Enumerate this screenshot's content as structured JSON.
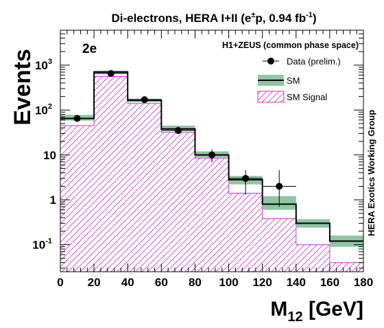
{
  "chart_data": {
    "type": "bar",
    "title": "Di-electrons, HERA I+II (e",
    "title_sup1": "±",
    "title_mid": "p, 0.94 fb",
    "title_sup2": "-1",
    "title_end": ")",
    "channel_label": "2e",
    "phase_space_label": "H1+ZEUS (common phase space)",
    "side_label": "HERA Exotics Working Group",
    "xlabel_main": "M",
    "xlabel_sub": "12",
    "xlabel_unit": " [GeV]",
    "ylabel": "Events",
    "x_scale": "linear",
    "y_scale": "log",
    "xlim": [
      0,
      180
    ],
    "ylim": [
      0.025,
      6000
    ],
    "x_ticks": [
      0,
      20,
      40,
      60,
      80,
      100,
      120,
      140,
      160,
      180
    ],
    "y_tick_labels": [
      {
        "value": 1000,
        "base": "10",
        "exp": "3"
      },
      {
        "value": 100,
        "base": "10",
        "exp": "2"
      },
      {
        "value": 10,
        "base": "10",
        "exp": ""
      },
      {
        "value": 1,
        "base": "1",
        "exp": ""
      },
      {
        "value": 0.1,
        "base": "10",
        "exp": "-1"
      }
    ],
    "bin_edges": [
      0,
      20,
      40,
      60,
      80,
      100,
      120,
      140,
      160,
      180
    ],
    "series": [
      {
        "name": "Data (prelim.)",
        "kind": "points",
        "x": [
          10,
          30,
          50,
          70,
          90,
          110,
          130
        ],
        "values": [
          65,
          650,
          170,
          35,
          10,
          3,
          2
        ],
        "err_low": [
          57,
          625,
          157,
          29,
          6.8,
          1.3,
          0.7
        ],
        "err_high": [
          74,
          676,
          184,
          41,
          13.2,
          4.6,
          4.6
        ],
        "marker_color": "#000000"
      },
      {
        "name": "SM",
        "kind": "step",
        "values": [
          65,
          700,
          165,
          38,
          10,
          2.8,
          0.8,
          0.3,
          0.12
        ],
        "band_low": [
          58,
          640,
          150,
          34,
          8.8,
          2.2,
          0.6,
          0.24,
          0.09
        ],
        "band_high": [
          78,
          760,
          180,
          45,
          12,
          3.4,
          1.2,
          0.37,
          0.16
        ],
        "line_color": "#000000",
        "band_color": "#8fc5a3"
      },
      {
        "name": "SM Signal",
        "kind": "hatched_step",
        "values": [
          45,
          560,
          140,
          32,
          8.5,
          1.4,
          0.38,
          0.1,
          0.04
        ],
        "line_color": "#cc33cc"
      }
    ],
    "legend_position": "top-right",
    "grid": false
  }
}
